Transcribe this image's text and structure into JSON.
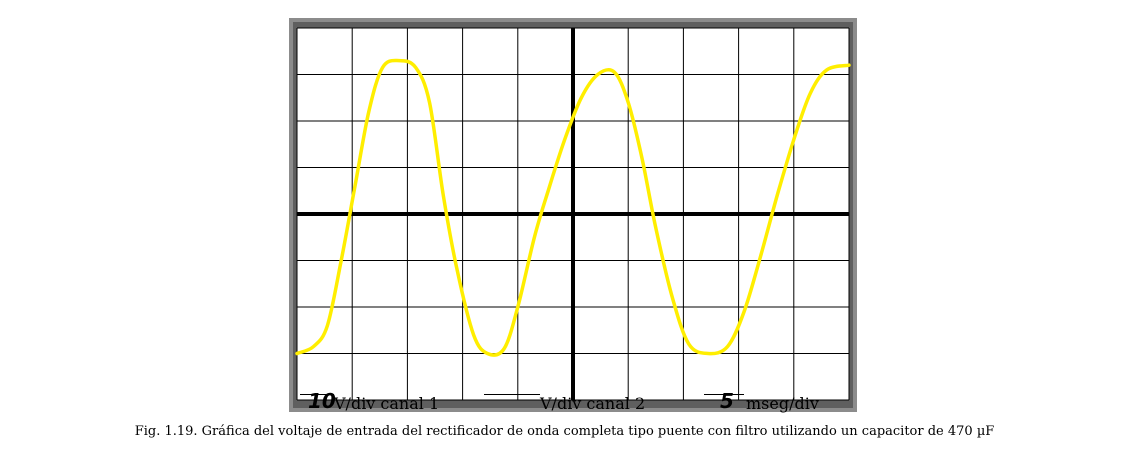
{
  "settings": {
    "ch1_value": "10",
    "ch1_unit": "V/div canal 1",
    "ch2_value": "",
    "ch2_unit": "V/div canal 2",
    "time_value": "5",
    "time_unit": "mseg/div"
  },
  "caption": "Fig. 1.19. Gráfica del voltaje de entrada del rectificador de onda completa tipo puente con filtro utilizando un capacitor de 470 µF",
  "colors": {
    "trace": "#ffee00",
    "bezel": "#8c8c8c",
    "grid": "#000000"
  },
  "grid": {
    "columns": 10,
    "rows": 8
  },
  "waveform": {
    "volts_per_div": 10,
    "ms_per_div": 5,
    "peak_divisions": 3.3,
    "points_div": [
      [
        0.0,
        -3.0
      ],
      [
        0.3,
        -2.85
      ],
      [
        0.55,
        -2.4
      ],
      [
        0.8,
        -1.0
      ],
      [
        1.05,
        0.6
      ],
      [
        1.3,
        2.2
      ],
      [
        1.55,
        3.15
      ],
      [
        1.85,
        3.3
      ],
      [
        2.15,
        3.15
      ],
      [
        2.4,
        2.4
      ],
      [
        2.65,
        0.4
      ],
      [
        2.9,
        -1.2
      ],
      [
        3.2,
        -2.6
      ],
      [
        3.45,
        -3.0
      ],
      [
        3.75,
        -2.9
      ],
      [
        4.0,
        -2.0
      ],
      [
        4.3,
        -0.5
      ],
      [
        4.55,
        0.5
      ],
      [
        4.85,
        1.6
      ],
      [
        5.15,
        2.5
      ],
      [
        5.45,
        3.0
      ],
      [
        5.75,
        3.05
      ],
      [
        6.0,
        2.4
      ],
      [
        6.25,
        1.2
      ],
      [
        6.5,
        -0.3
      ],
      [
        6.8,
        -1.8
      ],
      [
        7.1,
        -2.8
      ],
      [
        7.45,
        -3.0
      ],
      [
        7.8,
        -2.85
      ],
      [
        8.1,
        -2.1
      ],
      [
        8.4,
        -0.9
      ],
      [
        8.7,
        0.4
      ],
      [
        9.0,
        1.6
      ],
      [
        9.3,
        2.6
      ],
      [
        9.6,
        3.1
      ],
      [
        10.0,
        3.2
      ]
    ]
  }
}
